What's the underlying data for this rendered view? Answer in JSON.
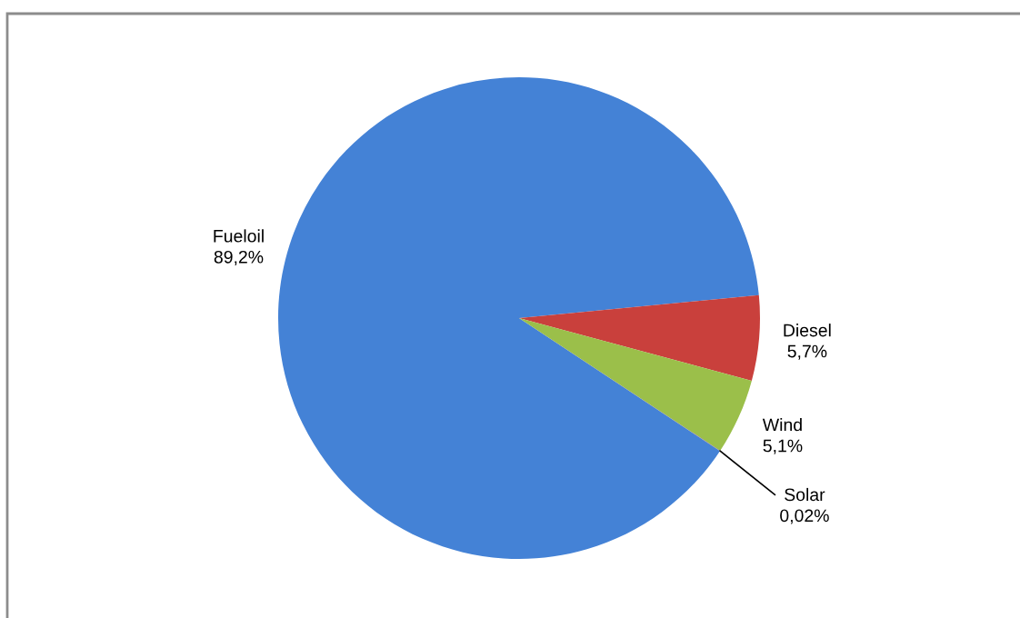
{
  "chart_data": {
    "type": "pie",
    "categories": [
      "Fueloil",
      "Diesel",
      "Wind",
      "Solar"
    ],
    "values": [
      89.2,
      5.7,
      5.1,
      0.02
    ],
    "colors": [
      "#4482d6",
      "#c9403c",
      "#9bbf4a",
      "#8064a2"
    ],
    "value_labels": [
      "89,2%",
      "5,7%",
      "5,1%",
      "0,02%"
    ]
  }
}
